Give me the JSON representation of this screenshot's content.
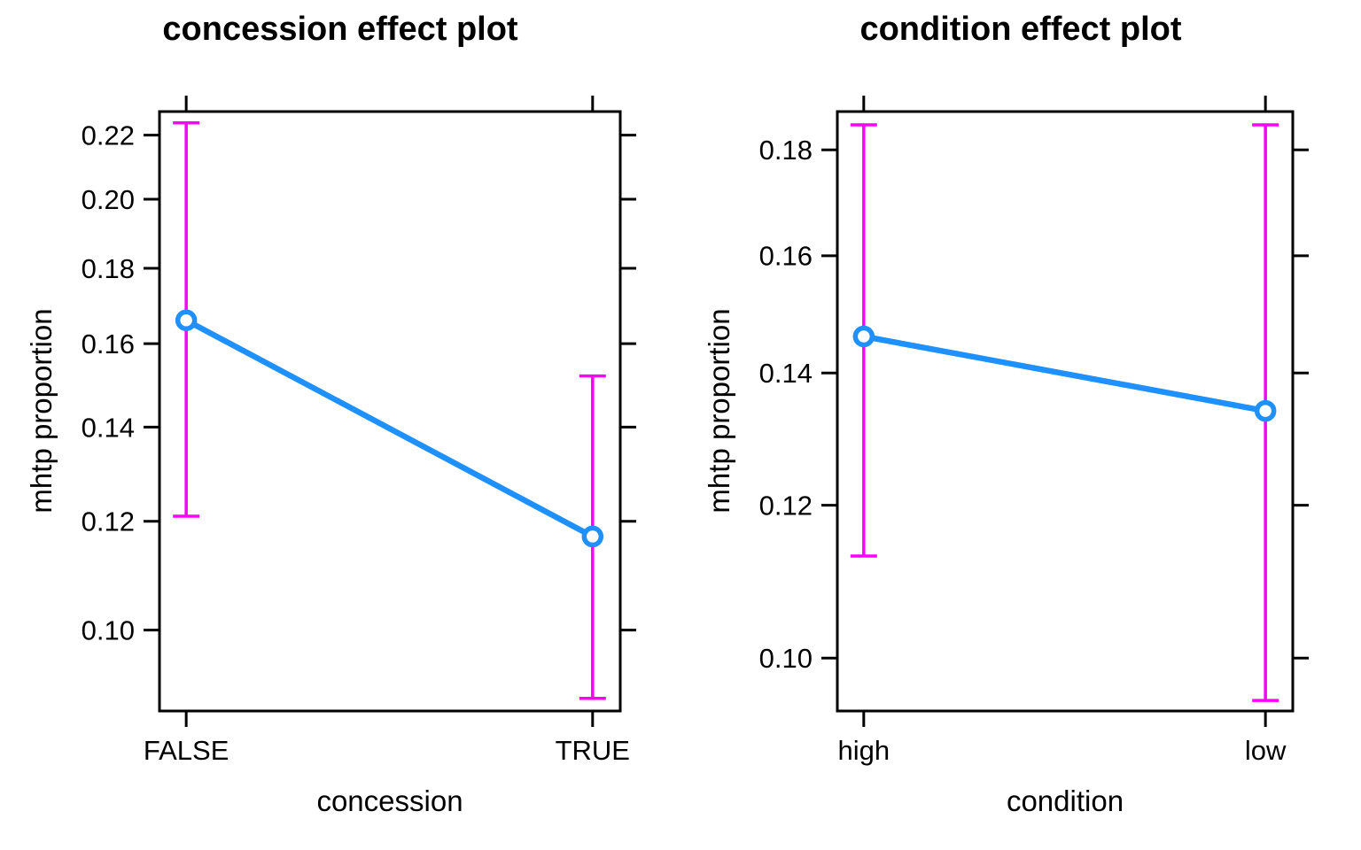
{
  "colors": {
    "fit_line": "#1E90FF",
    "error_bar": "#FF00FF",
    "axis": "#000000",
    "background": "#ffffff"
  },
  "chart_data": [
    {
      "type": "line",
      "title": "concession effect plot",
      "xlabel": "concession",
      "ylabel": "mhtp proportion",
      "y_scale": "logit",
      "grid": false,
      "categories": [
        "FALSE",
        "TRUE"
      ],
      "series": [
        {
          "name": "fit",
          "values": [
            0.166,
            0.117
          ]
        }
      ],
      "error_bars": {
        "lower": [
          0.121,
          0.089
        ],
        "upper": [
          0.224,
          0.152
        ]
      },
      "y_ticks": [
        0.1,
        0.12,
        0.14,
        0.16,
        0.18,
        0.2,
        0.22
      ],
      "y_tick_labels": [
        "0.10",
        "0.12",
        "0.14",
        "0.16",
        "0.18",
        "0.20",
        "0.22"
      ],
      "ylim": [
        0.0871,
        0.2277
      ]
    },
    {
      "type": "line",
      "title": "condition effect plot",
      "xlabel": "condition",
      "ylabel": "mhtp proportion",
      "y_scale": "logit",
      "grid": false,
      "categories": [
        "high",
        "low"
      ],
      "series": [
        {
          "name": "fit",
          "values": [
            0.146,
            0.134
          ]
        }
      ],
      "error_bars": {
        "lower": [
          0.113,
          0.095
        ],
        "upper": [
          0.185,
          0.185
        ]
      },
      "y_ticks": [
        0.1,
        0.12,
        0.14,
        0.16,
        0.18
      ],
      "y_tick_labels": [
        "0.10",
        "0.12",
        "0.14",
        "0.16",
        "0.18"
      ],
      "ylim": [
        0.0938,
        0.1877
      ]
    }
  ]
}
